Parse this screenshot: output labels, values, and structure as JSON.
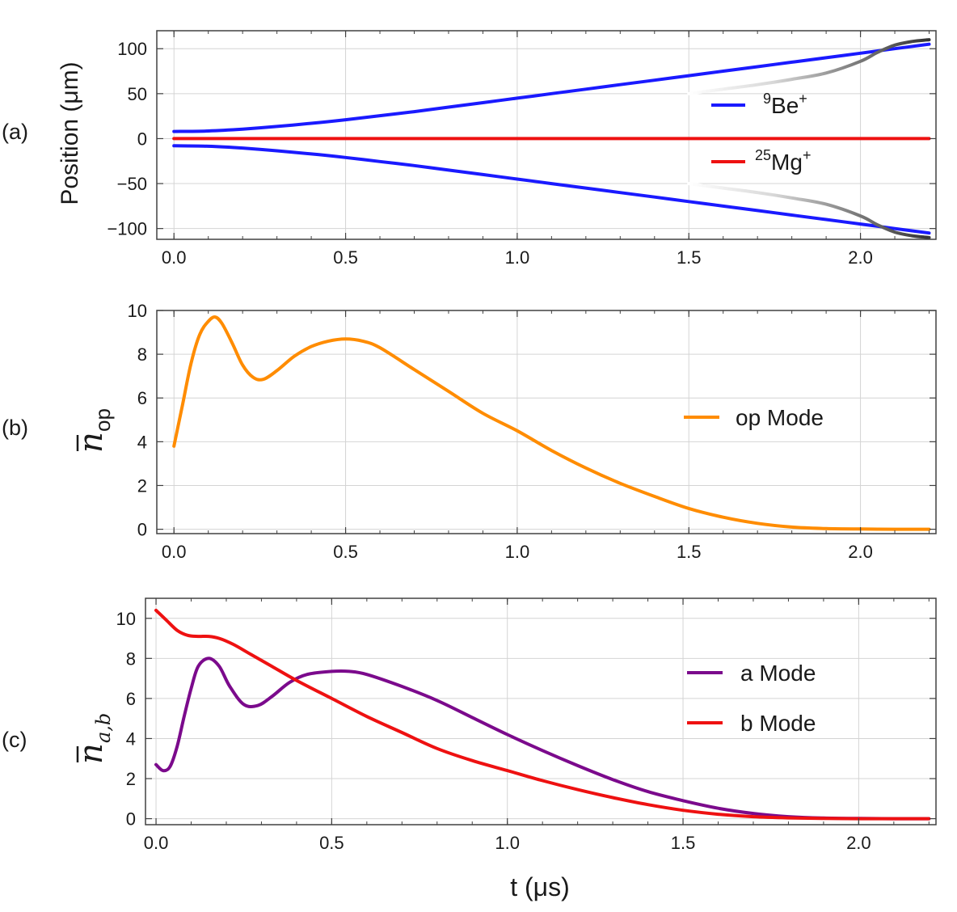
{
  "chart_data": [
    {
      "type": "line",
      "panel_label": "(a)",
      "ylabel": "Position (μm)",
      "xlabel": "",
      "xlim": [
        -0.05,
        2.22
      ],
      "ylim": [
        -112,
        120
      ],
      "xticks": [
        "0.0",
        "0.5",
        "1.0",
        "1.5",
        "2.0"
      ],
      "xtick_values": [
        0,
        0.5,
        1.0,
        1.5,
        2.0
      ],
      "yticks": [
        "−100",
        "−50",
        "0",
        "50",
        "100"
      ],
      "ytick_values": [
        -100,
        -50,
        0,
        50,
        100
      ],
      "legend": [
        {
          "sup": "9",
          "label": "Be",
          "charge": "+",
          "color": "#1a1aff"
        },
        {
          "sup": "25",
          "label": "Mg",
          "charge": "+",
          "color": "#ee1111"
        }
      ],
      "series": [
        {
          "name": "9Be+ upper",
          "color": "#1a1aff",
          "x": [
            0,
            0.1,
            0.2,
            0.3,
            0.4,
            0.5,
            0.6,
            0.7,
            0.8,
            0.9,
            1.0,
            1.1,
            1.2,
            1.3,
            1.4,
            1.5,
            1.6,
            1.7,
            1.8,
            1.9,
            2.0,
            2.1,
            2.2
          ],
          "y": [
            8,
            8.5,
            10.5,
            13.5,
            17,
            21,
            25.5,
            30,
            35,
            40,
            45,
            50,
            55,
            60,
            65,
            70,
            75,
            80,
            85,
            90,
            95,
            100,
            105
          ]
        },
        {
          "name": "9Be+ lower",
          "color": "#1a1aff",
          "x": [
            0,
            0.1,
            0.2,
            0.3,
            0.4,
            0.5,
            0.6,
            0.7,
            0.8,
            0.9,
            1.0,
            1.1,
            1.2,
            1.3,
            1.4,
            1.5,
            1.6,
            1.7,
            1.8,
            1.9,
            2.0,
            2.1,
            2.2
          ],
          "y": [
            -8,
            -8.5,
            -10.5,
            -13.5,
            -17,
            -21,
            -25.5,
            -30,
            -35,
            -40,
            -45,
            -50,
            -55,
            -60,
            -65,
            -70,
            -75,
            -80,
            -85,
            -90,
            -95,
            -100,
            -105
          ]
        },
        {
          "name": "25Mg+",
          "color": "#ee1111",
          "x": [
            0,
            2.2
          ],
          "y": [
            0,
            0
          ]
        },
        {
          "name": "gray upper",
          "color": "#555555",
          "x": [
            1.5,
            1.6,
            1.7,
            1.8,
            1.9,
            2.0,
            2.05,
            2.1,
            2.15,
            2.2
          ],
          "y": [
            50,
            55,
            60,
            66,
            73,
            86,
            96,
            104,
            108,
            110
          ]
        },
        {
          "name": "gray lower",
          "color": "#555555",
          "x": [
            1.5,
            1.6,
            1.7,
            1.8,
            1.9,
            2.0,
            2.05,
            2.1,
            2.15,
            2.2
          ],
          "y": [
            -50,
            -55,
            -60,
            -66,
            -73,
            -86,
            -96,
            -104,
            -108,
            -110
          ]
        }
      ]
    },
    {
      "type": "line",
      "panel_label": "(b)",
      "ylabel_main": "n",
      "ylabel_sub": "op",
      "xlim": [
        -0.05,
        2.22
      ],
      "ylim": [
        -0.2,
        10
      ],
      "xticks": [
        "0.0",
        "0.5",
        "1.0",
        "1.5",
        "2.0"
      ],
      "xtick_values": [
        0,
        0.5,
        1.0,
        1.5,
        2.0
      ],
      "yticks": [
        "0",
        "2",
        "4",
        "6",
        "8",
        "10"
      ],
      "ytick_values": [
        0,
        2,
        4,
        6,
        8,
        10
      ],
      "legend": [
        {
          "label": "op Mode",
          "color": "#ff8c00"
        }
      ],
      "series": [
        {
          "name": "op Mode",
          "color": "#ff8c00",
          "x": [
            0,
            0.025,
            0.05,
            0.075,
            0.1,
            0.12,
            0.14,
            0.17,
            0.2,
            0.23,
            0.26,
            0.3,
            0.35,
            0.4,
            0.45,
            0.5,
            0.55,
            0.6,
            0.7,
            0.8,
            0.9,
            1.0,
            1.1,
            1.2,
            1.3,
            1.4,
            1.5,
            1.6,
            1.7,
            1.8,
            1.9,
            2.0,
            2.1,
            2.2
          ],
          "y": [
            3.8,
            5.7,
            7.6,
            8.9,
            9.5,
            9.7,
            9.4,
            8.5,
            7.5,
            6.95,
            6.85,
            7.25,
            7.9,
            8.35,
            8.6,
            8.7,
            8.6,
            8.3,
            7.3,
            6.3,
            5.3,
            4.5,
            3.6,
            2.8,
            2.1,
            1.5,
            0.95,
            0.55,
            0.27,
            0.1,
            0.03,
            0.01,
            0,
            0
          ]
        }
      ]
    },
    {
      "type": "line",
      "panel_label": "(c)",
      "ylabel_main": "n",
      "ylabel_sub": "a,b",
      "xlabel": "t (μs)",
      "xlim": [
        -0.03,
        2.22
      ],
      "ylim": [
        -0.3,
        11
      ],
      "xticks": [
        "0.0",
        "0.5",
        "1.0",
        "1.5",
        "2.0"
      ],
      "xtick_values": [
        0,
        0.5,
        1.0,
        1.5,
        2.0
      ],
      "yticks": [
        "0",
        "2",
        "4",
        "6",
        "8",
        "10"
      ],
      "ytick_values": [
        0,
        2,
        4,
        6,
        8,
        10
      ],
      "legend": [
        {
          "label": "a Mode",
          "color": "#7b0a8c"
        },
        {
          "label": "b Mode",
          "color": "#ee1111"
        }
      ],
      "series": [
        {
          "name": "a Mode",
          "color": "#7b0a8c",
          "x": [
            0,
            0.02,
            0.04,
            0.06,
            0.08,
            0.1,
            0.12,
            0.15,
            0.18,
            0.21,
            0.25,
            0.29,
            0.33,
            0.38,
            0.43,
            0.5,
            0.55,
            0.6,
            0.7,
            0.8,
            0.9,
            1.0,
            1.1,
            1.2,
            1.3,
            1.4,
            1.5,
            1.6,
            1.7,
            1.8,
            1.9,
            2.0,
            2.1,
            2.2
          ],
          "y": [
            2.7,
            2.4,
            2.6,
            3.6,
            5.1,
            6.5,
            7.6,
            8.0,
            7.6,
            6.6,
            5.7,
            5.65,
            6.1,
            6.8,
            7.2,
            7.35,
            7.35,
            7.2,
            6.6,
            5.9,
            5.05,
            4.2,
            3.4,
            2.65,
            1.95,
            1.35,
            0.9,
            0.52,
            0.26,
            0.1,
            0.03,
            0.01,
            0,
            0
          ]
        },
        {
          "name": "b Mode",
          "color": "#ee1111",
          "x": [
            0,
            0.03,
            0.06,
            0.09,
            0.12,
            0.15,
            0.18,
            0.22,
            0.27,
            0.33,
            0.4,
            0.5,
            0.6,
            0.7,
            0.8,
            0.9,
            1.0,
            1.1,
            1.2,
            1.3,
            1.4,
            1.5,
            1.6,
            1.7,
            1.8,
            1.9,
            2.0,
            2.1,
            2.2
          ],
          "y": [
            10.4,
            9.9,
            9.4,
            9.15,
            9.1,
            9.1,
            9.0,
            8.7,
            8.2,
            7.6,
            6.9,
            6.0,
            5.1,
            4.3,
            3.5,
            2.9,
            2.4,
            1.9,
            1.45,
            1.05,
            0.7,
            0.42,
            0.22,
            0.1,
            0.04,
            0.01,
            0,
            0,
            0
          ]
        }
      ]
    }
  ]
}
